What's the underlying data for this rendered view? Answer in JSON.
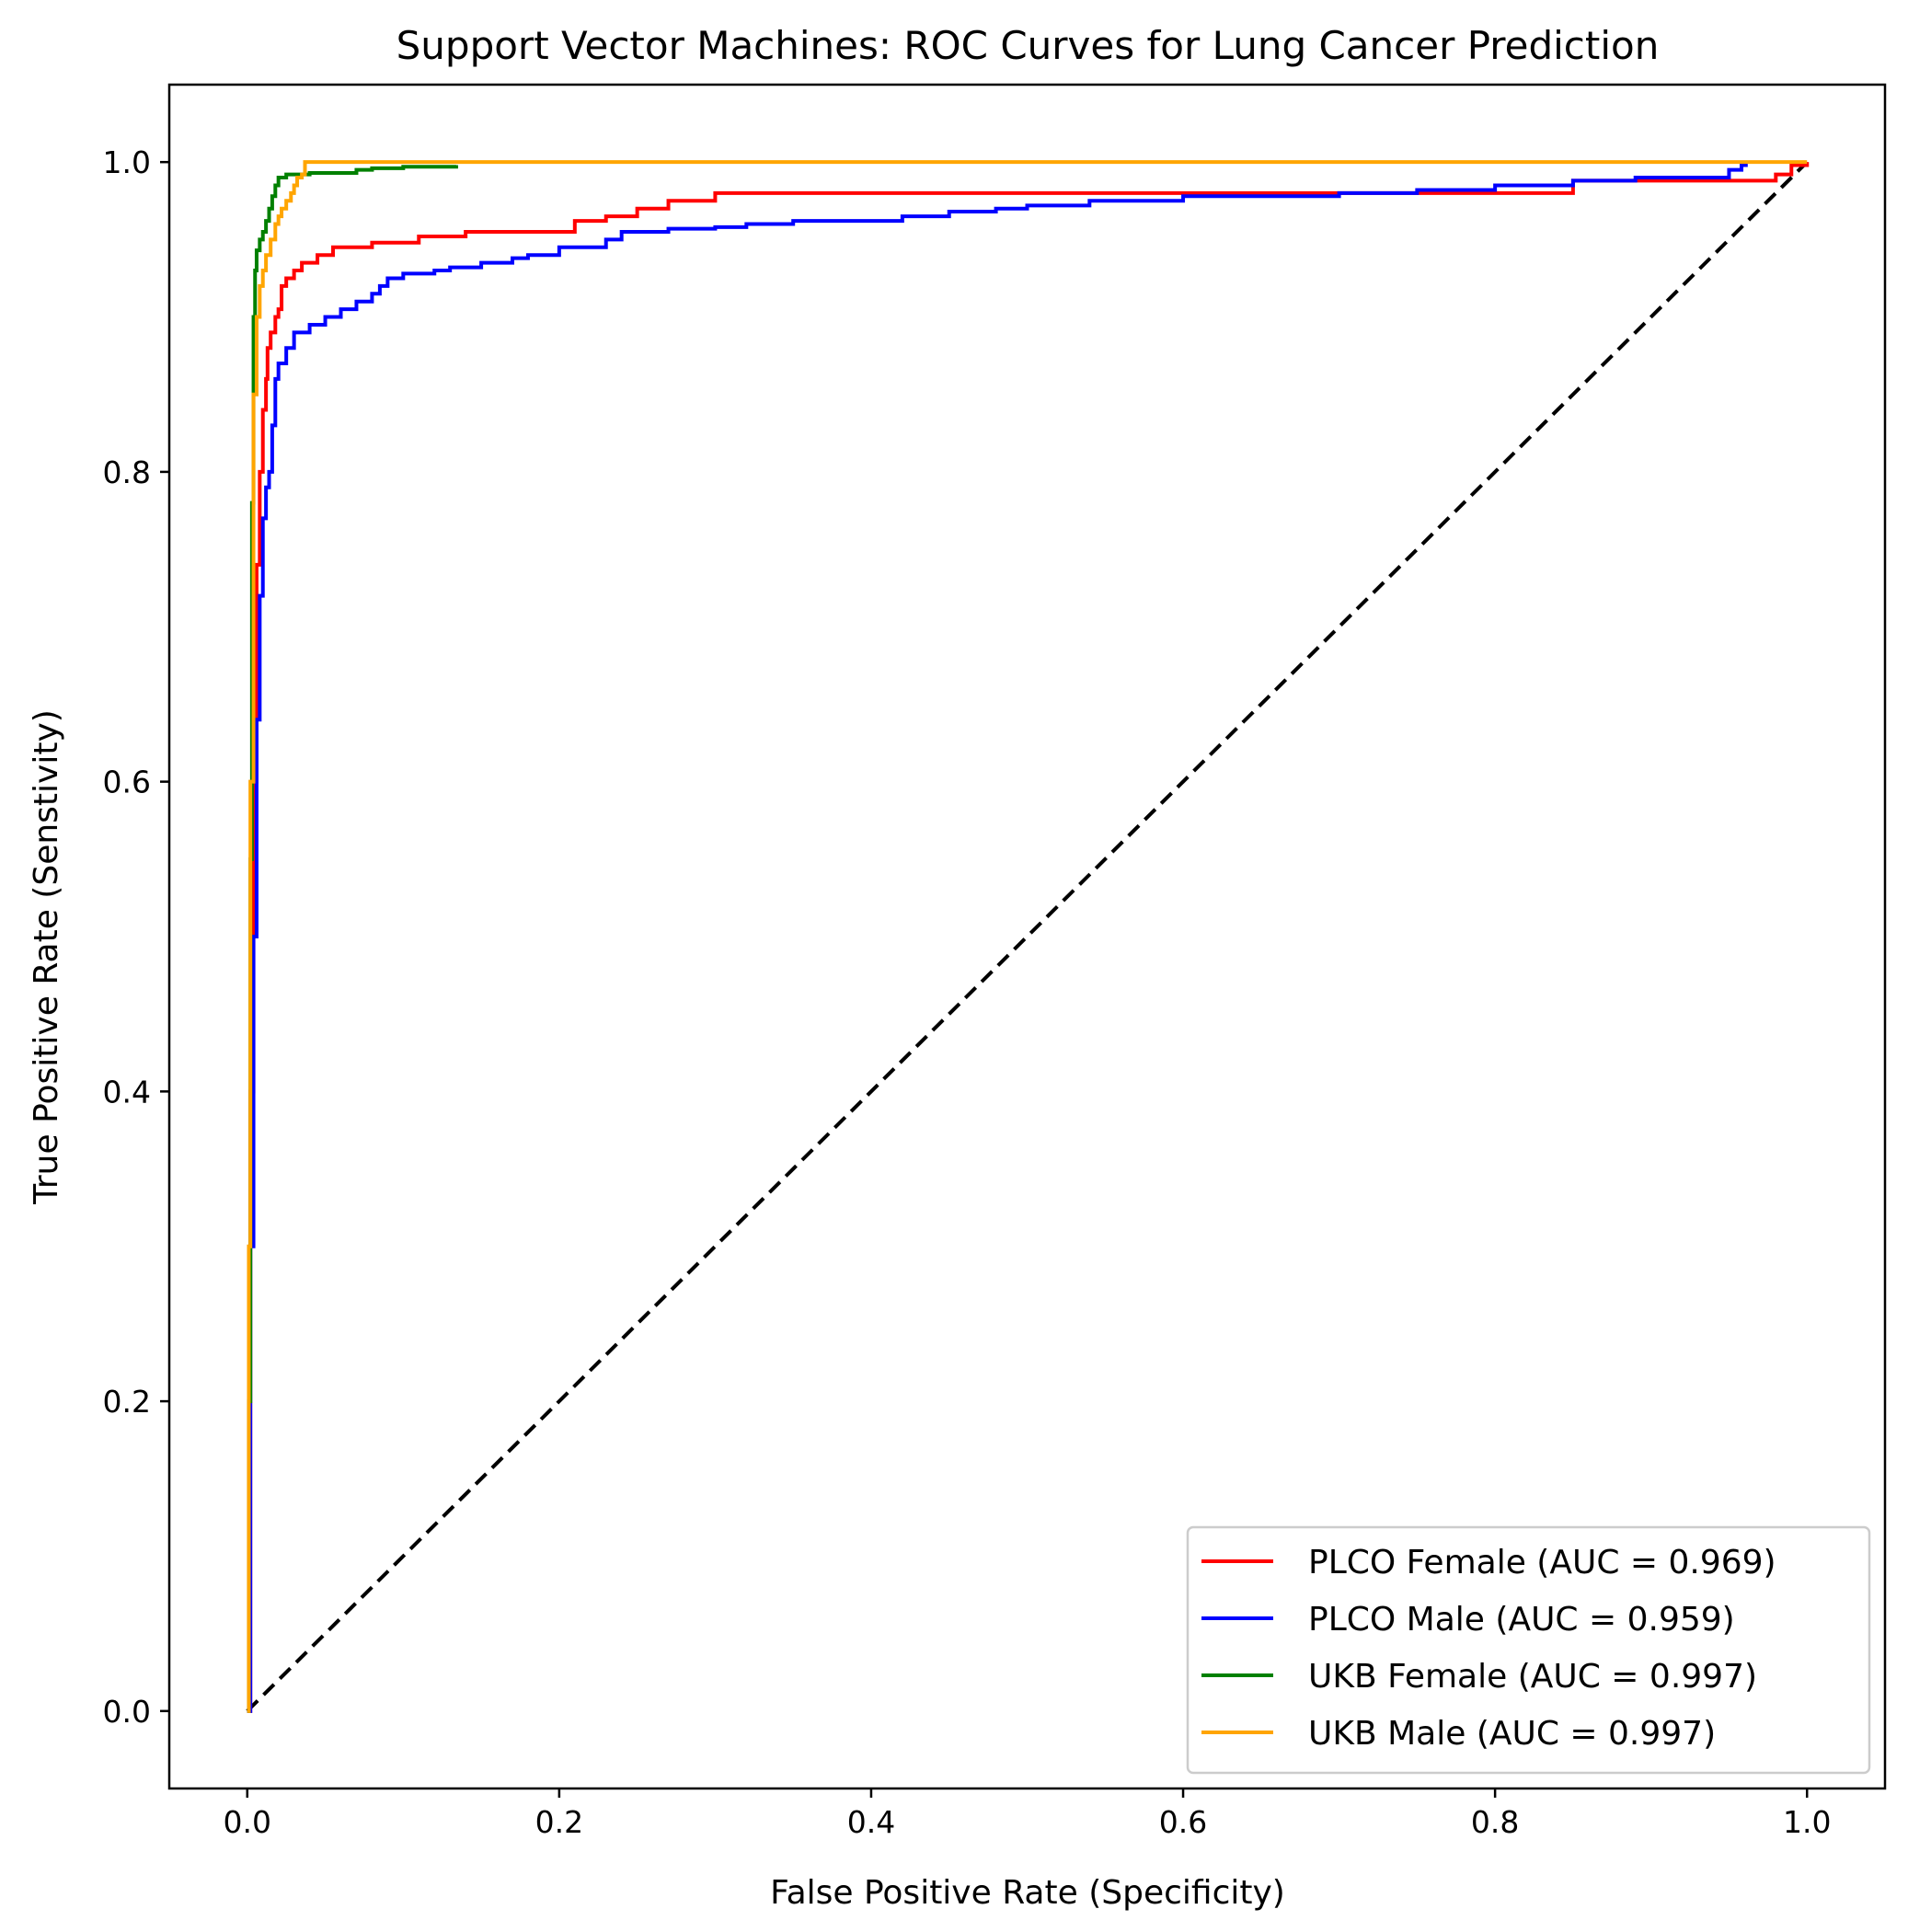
{
  "chart_data": {
    "type": "line",
    "title": "Support Vector Machines: ROC Curves for Lung Cancer Prediction",
    "xlabel": "False Positive Rate (Specificity)",
    "ylabel": "True Positive Rate (Senstivity)",
    "xlim": [
      -0.05,
      1.05
    ],
    "ylim": [
      -0.05,
      1.05
    ],
    "xticks": [
      {
        "value": 0.0,
        "label": "0.0"
      },
      {
        "value": 0.2,
        "label": "0.2"
      },
      {
        "value": 0.4,
        "label": "0.4"
      },
      {
        "value": 0.6,
        "label": "0.6"
      },
      {
        "value": 0.8,
        "label": "0.8"
      },
      {
        "value": 1.0,
        "label": "1.0"
      }
    ],
    "yticks": [
      {
        "value": 0.0,
        "label": "0.0"
      },
      {
        "value": 0.2,
        "label": "0.2"
      },
      {
        "value": 0.4,
        "label": "0.4"
      },
      {
        "value": 0.6,
        "label": "0.6"
      },
      {
        "value": 0.8,
        "label": "0.8"
      },
      {
        "value": 1.0,
        "label": "1.0"
      }
    ],
    "grid": false,
    "legend_position": "lower right",
    "reference_line": {
      "x": [
        0,
        1
      ],
      "y": [
        0,
        1
      ],
      "color": "#000000",
      "style": "dashed"
    },
    "series": [
      {
        "name": "PLCO Female (AUC = 0.969)",
        "color": "#ff0000",
        "x": [
          0,
          0.002,
          0.004,
          0.006,
          0.008,
          0.01,
          0.012,
          0.013,
          0.015,
          0.018,
          0.02,
          0.022,
          0.025,
          0.03,
          0.035,
          0.04,
          0.045,
          0.05,
          0.055,
          0.06,
          0.07,
          0.08,
          0.09,
          0.1,
          0.11,
          0.12,
          0.14,
          0.16,
          0.2,
          0.21,
          0.22,
          0.23,
          0.24,
          0.25,
          0.26,
          0.27,
          0.28,
          0.3,
          0.4,
          0.5,
          0.6,
          0.7,
          0.8,
          0.84,
          0.85,
          0.9,
          0.95,
          0.98,
          0.99,
          1.0
        ],
        "y": [
          0,
          0.4,
          0.6,
          0.74,
          0.8,
          0.84,
          0.86,
          0.88,
          0.89,
          0.9,
          0.905,
          0.92,
          0.925,
          0.93,
          0.935,
          0.935,
          0.94,
          0.94,
          0.945,
          0.945,
          0.945,
          0.948,
          0.948,
          0.948,
          0.952,
          0.952,
          0.955,
          0.955,
          0.955,
          0.962,
          0.962,
          0.965,
          0.965,
          0.97,
          0.97,
          0.975,
          0.975,
          0.98,
          0.98,
          0.98,
          0.98,
          0.98,
          0.98,
          0.98,
          0.988,
          0.988,
          0.988,
          0.992,
          0.998,
          1.0
        ]
      },
      {
        "name": "PLCO Male (AUC = 0.959)",
        "color": "#0000ff",
        "x": [
          0,
          0.002,
          0.004,
          0.006,
          0.008,
          0.01,
          0.012,
          0.014,
          0.016,
          0.018,
          0.02,
          0.025,
          0.03,
          0.04,
          0.05,
          0.06,
          0.07,
          0.08,
          0.085,
          0.09,
          0.1,
          0.11,
          0.12,
          0.13,
          0.14,
          0.15,
          0.16,
          0.17,
          0.18,
          0.19,
          0.2,
          0.21,
          0.22,
          0.23,
          0.24,
          0.25,
          0.27,
          0.3,
          0.32,
          0.35,
          0.4,
          0.42,
          0.45,
          0.48,
          0.5,
          0.54,
          0.6,
          0.7,
          0.75,
          0.8,
          0.81,
          0.85,
          0.89,
          0.9,
          0.95,
          0.958,
          0.962
        ],
        "y": [
          0,
          0.3,
          0.5,
          0.64,
          0.72,
          0.77,
          0.79,
          0.8,
          0.83,
          0.86,
          0.87,
          0.88,
          0.89,
          0.895,
          0.9,
          0.905,
          0.91,
          0.915,
          0.92,
          0.925,
          0.928,
          0.928,
          0.93,
          0.932,
          0.932,
          0.935,
          0.935,
          0.938,
          0.94,
          0.94,
          0.945,
          0.945,
          0.945,
          0.95,
          0.955,
          0.955,
          0.957,
          0.958,
          0.96,
          0.962,
          0.962,
          0.965,
          0.968,
          0.97,
          0.972,
          0.975,
          0.978,
          0.98,
          0.982,
          0.985,
          0.985,
          0.988,
          0.99,
          0.99,
          0.995,
          0.998,
          0.998
        ]
      },
      {
        "name": "UKB Female (AUC = 0.997)",
        "color": "#008000",
        "x": [
          0,
          0.001,
          0.002,
          0.003,
          0.004,
          0.005,
          0.006,
          0.008,
          0.01,
          0.012,
          0.014,
          0.016,
          0.018,
          0.02,
          0.022,
          0.025,
          0.03,
          0.04,
          0.05,
          0.06,
          0.07,
          0.08,
          0.1,
          0.12,
          0.134
        ],
        "y": [
          0,
          0.2,
          0.55,
          0.78,
          0.9,
          0.93,
          0.943,
          0.95,
          0.955,
          0.962,
          0.97,
          0.978,
          0.985,
          0.99,
          0.99,
          0.992,
          0.992,
          0.993,
          0.993,
          0.993,
          0.995,
          0.996,
          0.997,
          0.997,
          0.998
        ]
      },
      {
        "name": "UKB Male (AUC = 0.997)",
        "color": "#ffa500",
        "x": [
          0,
          0.001,
          0.002,
          0.004,
          0.006,
          0.008,
          0.01,
          0.012,
          0.015,
          0.018,
          0.02,
          0.022,
          0.025,
          0.028,
          0.03,
          0.032,
          0.035,
          0.037,
          0.04,
          0.1,
          0.5,
          1.0
        ],
        "y": [
          0,
          0.3,
          0.6,
          0.85,
          0.9,
          0.92,
          0.93,
          0.94,
          0.95,
          0.96,
          0.965,
          0.97,
          0.975,
          0.98,
          0.985,
          0.99,
          0.992,
          1.0,
          1.0,
          1.0,
          1.0,
          1.0
        ]
      }
    ]
  }
}
